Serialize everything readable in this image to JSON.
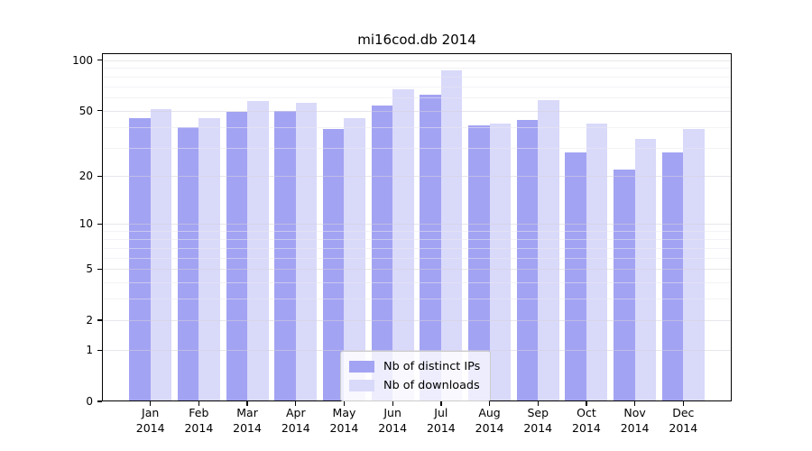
{
  "title": "mi16cod.db 2014",
  "chart_data": {
    "type": "bar",
    "title": "mi16cod.db 2014",
    "x_categories": [
      "Jan",
      "Feb",
      "Mar",
      "Apr",
      "May",
      "Jun",
      "Jul",
      "Aug",
      "Sep",
      "Oct",
      "Nov",
      "Dec"
    ],
    "x_year": "2014",
    "series": [
      {
        "key": "distinct-ips",
        "name": "Nb of distinct IPs",
        "color": "#a3a3f3",
        "values": [
          45,
          40,
          49,
          50,
          39,
          54,
          62,
          41,
          44,
          28,
          22,
          28
        ]
      },
      {
        "key": "downloads",
        "name": "Nb of downloads",
        "color": "#d9d9fa",
        "values": [
          51,
          45,
          57,
          56,
          45,
          67,
          87,
          42,
          58,
          42,
          34,
          39
        ]
      }
    ],
    "y_scale": "log10(value+1)",
    "y_ticks": [
      100,
      50,
      20,
      10,
      5,
      2,
      1,
      0
    ],
    "y_minor_gridlines": [
      3,
      4,
      6,
      7,
      8,
      9,
      30,
      40,
      60,
      70,
      80,
      90
    ],
    "ylim": [
      0,
      110
    ],
    "grid": true,
    "legend_position": "bottom-center"
  },
  "colors": {
    "background": "#ffffff",
    "frame": "#000000",
    "text": "#000000",
    "grid_major": "rgba(213,210,219,0.55)",
    "grid_minor": "rgba(233,231,238,0.55)",
    "legend_border": "#cccccc"
  }
}
